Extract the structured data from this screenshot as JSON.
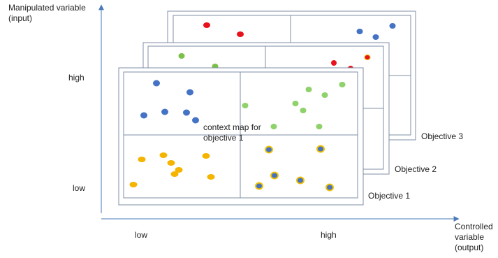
{
  "axes": {
    "y_title": "Manipulated variable (input)",
    "x_title": "Controlled variable (output)",
    "y_high": "high",
    "y_low": "low",
    "x_low": "low",
    "x_high": "high"
  },
  "objectives": [
    {
      "label": "Objective 3"
    },
    {
      "label": "Objective 2"
    },
    {
      "label": "Objective 1"
    }
  ],
  "context_label": "context map for objective 1",
  "colors": {
    "axis": "#4a7ab8",
    "panel_border": "#7f8fa6",
    "blue_dot": "#4472c4",
    "green_dot": "#8fd16a",
    "red_dot": "#e8121c",
    "orange_dot": "#f5b400",
    "dot_outline_yellow": "#f0c000"
  }
}
